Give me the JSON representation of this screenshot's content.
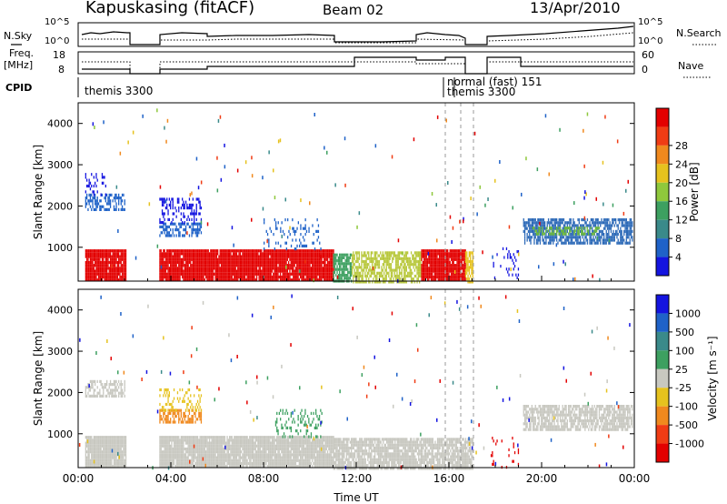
{
  "header": {
    "station": "Kapuskasing (fitACF)",
    "beam": "Beam 02",
    "date": "13/Apr/2010"
  },
  "param_panels": {
    "nsky_label": "N.Sky",
    "nsky_ticks": [
      "10^5",
      "10^0"
    ],
    "nsearch_label": "N.Search",
    "nsearch_ticks": [
      "10^5",
      "10^0"
    ],
    "freq_label_top": "Freq.",
    "freq_label_bottom": "[MHz]",
    "freq_ticks": [
      "18",
      "8"
    ],
    "nave_label": "Nave",
    "nave_ticks": [
      "60",
      "0"
    ],
    "cpid_label": "CPID",
    "cpid_segments": [
      {
        "start_h": 0.0,
        "text": "themis 3300"
      },
      {
        "start_h": 16.0,
        "text": "normal (fast) 151"
      },
      {
        "start_h": 16.0,
        "text": "themis 3300"
      }
    ]
  },
  "chart_data": [
    {
      "type": "heatmap",
      "name": "power",
      "ylabel": "Slant Range [km]",
      "xlabel": "",
      "y_ticks": [
        1000,
        2000,
        3000,
        4000
      ],
      "ylim": [
        180,
        4500
      ],
      "xlim": [
        0,
        24
      ],
      "colorbar_label": "Power [dB]",
      "colorbar_ticks": [
        "4",
        "8",
        "12",
        "16",
        "20",
        "24",
        "28"
      ],
      "colorbar_colors": [
        "#1414e0",
        "#1f62c8",
        "#3a8a8a",
        "#3da060",
        "#8fc83c",
        "#e6c21e",
        "#f0891e",
        "#f03c14",
        "#e30000"
      ],
      "blocks": [
        {
          "t0": 0.3,
          "t1": 2.05,
          "r0": 180,
          "r1": 950,
          "color": "#e30000",
          "density": 0.95
        },
        {
          "t0": 3.5,
          "t1": 11.0,
          "r0": 180,
          "r1": 950,
          "color": "#e30000",
          "density": 0.95
        },
        {
          "t0": 11.0,
          "t1": 11.8,
          "r0": 180,
          "r1": 850,
          "color": "#3da060",
          "density": 0.8
        },
        {
          "t0": 11.8,
          "t1": 14.8,
          "r0": 180,
          "r1": 900,
          "color": "#b8c83c",
          "density": 0.75
        },
        {
          "t0": 14.8,
          "t1": 16.7,
          "r0": 180,
          "r1": 950,
          "color": "#e30000",
          "density": 0.95
        },
        {
          "t0": 16.7,
          "t1": 17.05,
          "r0": 180,
          "r1": 900,
          "color": "#e6c21e",
          "density": 0.8
        },
        {
          "t0": 0.3,
          "t1": 2.0,
          "r0": 1900,
          "r1": 2300,
          "color": "#1f62c8",
          "density": 0.55
        },
        {
          "t0": 0.3,
          "t1": 1.2,
          "r0": 2300,
          "r1": 2800,
          "color": "#1414e0",
          "density": 0.25
        },
        {
          "t0": 3.5,
          "t1": 5.3,
          "r0": 1250,
          "r1": 1600,
          "color": "#1f62c8",
          "density": 0.5
        },
        {
          "t0": 3.5,
          "t1": 5.3,
          "r0": 1600,
          "r1": 2200,
          "color": "#1414e0",
          "density": 0.3
        },
        {
          "t0": 19.2,
          "t1": 23.9,
          "r0": 1100,
          "r1": 1700,
          "color": "#2d6ab8",
          "density": 0.7
        },
        {
          "t0": 19.6,
          "t1": 22.5,
          "r0": 1300,
          "r1": 1500,
          "color": "#6cb83c",
          "density": 0.5
        },
        {
          "t0": 8.0,
          "t1": 10.5,
          "r0": 950,
          "r1": 1700,
          "color": "#1f62c8",
          "density": 0.15
        },
        {
          "t0": 17.8,
          "t1": 19.0,
          "r0": 180,
          "r1": 1000,
          "color": "#1414e0",
          "density": 0.1
        }
      ]
    },
    {
      "type": "heatmap",
      "name": "velocity",
      "ylabel": "Slant Range [km]",
      "xlabel": "Time UT",
      "y_ticks": [
        1000,
        2000,
        3000,
        4000
      ],
      "ylim": [
        180,
        4500
      ],
      "xlim": [
        0,
        24
      ],
      "x_ticks": [
        "00:00",
        "04:00",
        "08:00",
        "12:00",
        "16:00",
        "20:00",
        "00:00"
      ],
      "colorbar_label": "Velocity [m s⁻¹]",
      "colorbar_ticks": [
        "-1000",
        "-500",
        "-100",
        "-25",
        "25",
        "100",
        "500",
        "1000"
      ],
      "colorbar_colors": [
        "#e30000",
        "#f03c14",
        "#f0891e",
        "#e6c21e",
        "#c8c8c0",
        "#3da060",
        "#3a8a8a",
        "#1f62c8",
        "#1414e0"
      ],
      "blocks": [
        {
          "t0": 0.3,
          "t1": 2.05,
          "r0": 180,
          "r1": 950,
          "color": "#c8c8c0",
          "density": 0.95
        },
        {
          "t0": 3.5,
          "t1": 11.0,
          "r0": 180,
          "r1": 950,
          "color": "#c8c8c0",
          "density": 0.95
        },
        {
          "t0": 11.0,
          "t1": 16.7,
          "r0": 180,
          "r1": 900,
          "color": "#c8c8c0",
          "density": 0.85
        },
        {
          "t0": 16.7,
          "t1": 17.05,
          "r0": 180,
          "r1": 900,
          "color": "#c8c8c0",
          "density": 0.8
        },
        {
          "t0": 0.3,
          "t1": 2.0,
          "r0": 1900,
          "r1": 2300,
          "color": "#c8c8c0",
          "density": 0.55
        },
        {
          "t0": 3.5,
          "t1": 5.3,
          "r0": 1250,
          "r1": 1600,
          "color": "#f0891e",
          "density": 0.55
        },
        {
          "t0": 3.5,
          "t1": 5.3,
          "r0": 1600,
          "r1": 2100,
          "color": "#e6c21e",
          "density": 0.3
        },
        {
          "t0": 19.2,
          "t1": 23.9,
          "r0": 1100,
          "r1": 1700,
          "color": "#c8c8c0",
          "density": 0.75
        },
        {
          "t0": 8.5,
          "t1": 10.5,
          "r0": 950,
          "r1": 1600,
          "color": "#3da060",
          "density": 0.2
        },
        {
          "t0": 17.8,
          "t1": 19.0,
          "r0": 180,
          "r1": 1000,
          "color": "#e30000",
          "density": 0.08
        }
      ]
    }
  ]
}
